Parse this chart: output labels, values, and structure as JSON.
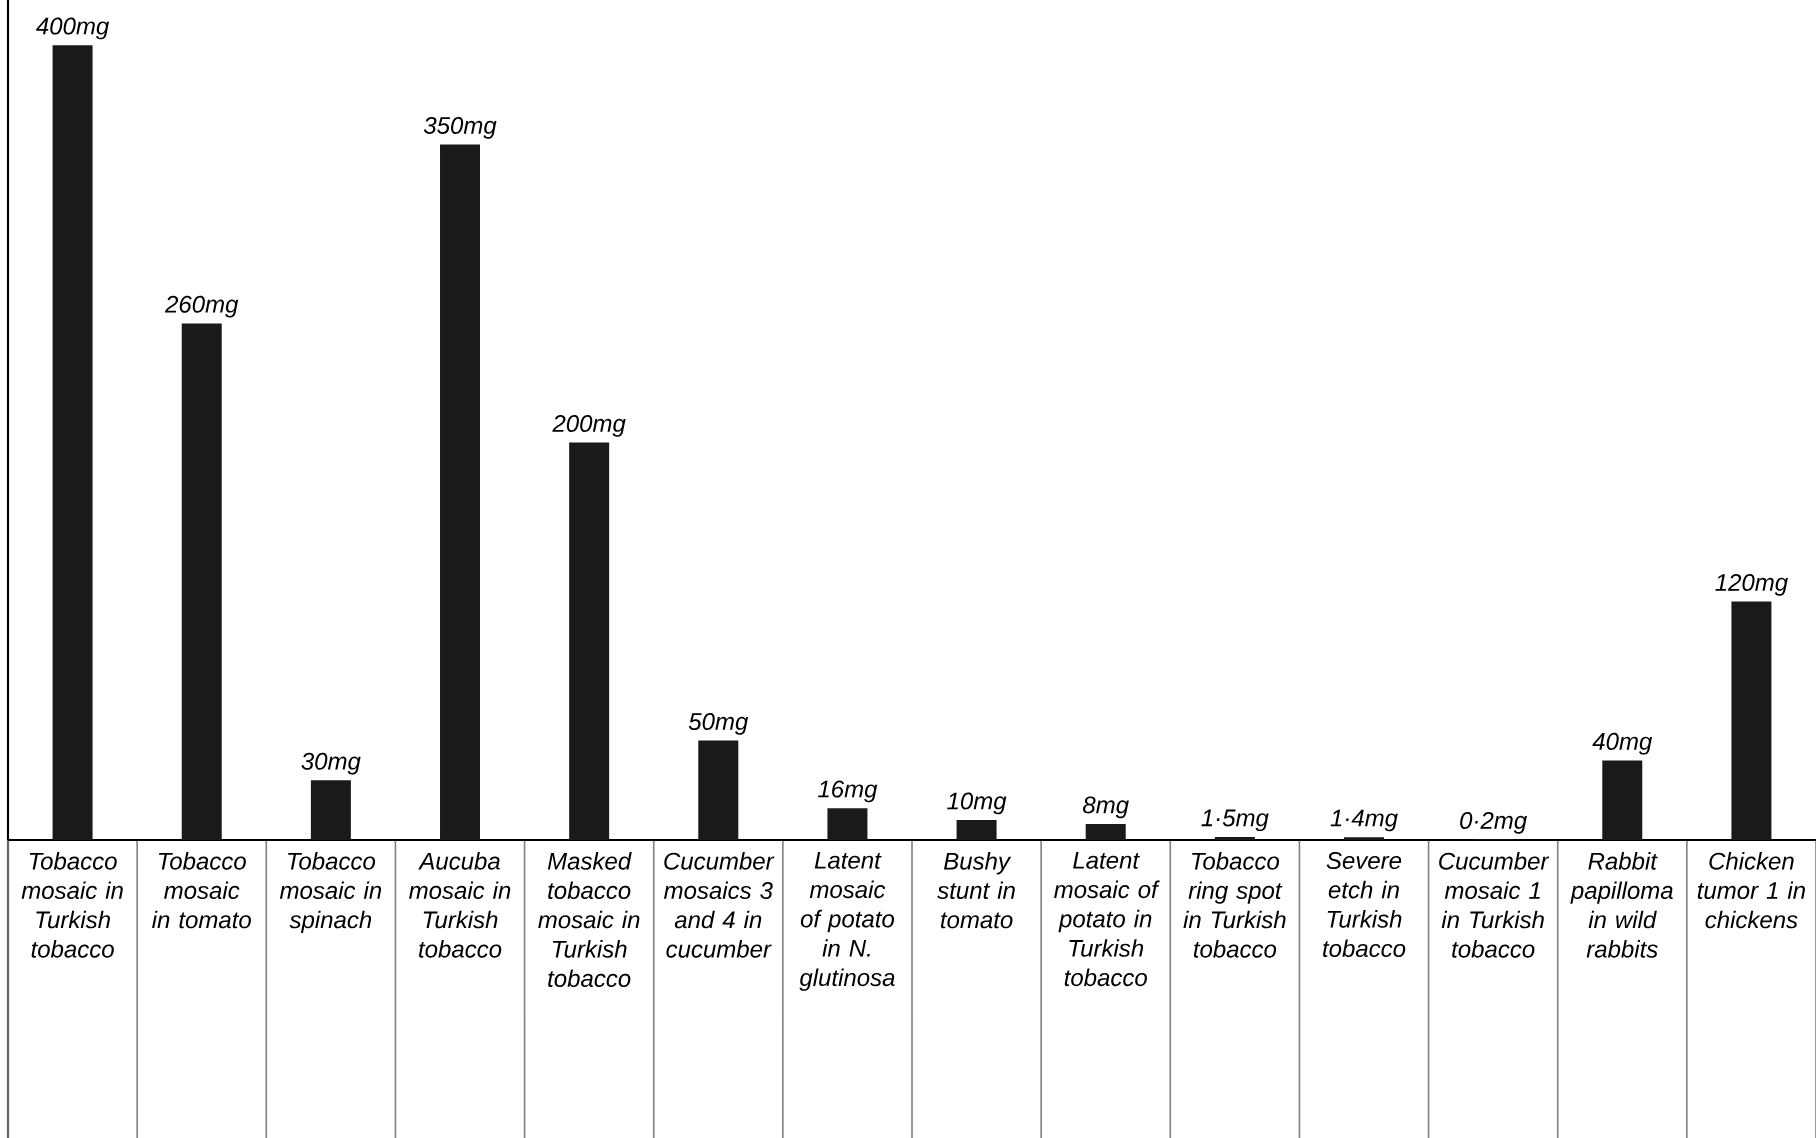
{
  "chart_data": {
    "type": "bar",
    "categories": [
      "Tobacco mosaic in Turkish tobacco",
      "Tobacco mosaic in tomato",
      "Tobacco mosaic in spinach",
      "Aucuba mosaic in Turkish tobacco",
      "Masked tobacco mosaic in Turkish tobacco",
      "Cucumber mosaics 3 and 4 in cucumber",
      "Latent mosaic of potato in N. glutinosa",
      "Bushy stunt in tomato",
      "Latent mosaic of potato in Turkish tobacco",
      "Tobacco ring spot in Turkish tobacco",
      "Severe etch in Turkish tobacco",
      "Cucumber mosaic 1 in Turkish tobacco",
      "Rabbit papilloma in wild rabbits",
      "Chicken tumor 1 in chickens"
    ],
    "values": [
      400,
      260,
      30,
      350,
      200,
      50,
      16,
      10,
      8,
      1.5,
      1.4,
      0.2,
      40,
      120
    ],
    "value_labels": [
      "400mg",
      "260mg",
      "30mg",
      "350mg",
      "200mg",
      "50mg",
      "16mg",
      "10mg",
      "8mg",
      "1·5mg",
      "1·4mg",
      "0·2mg",
      "40mg",
      "120mg"
    ],
    "color": "#1a1a1a"
  }
}
